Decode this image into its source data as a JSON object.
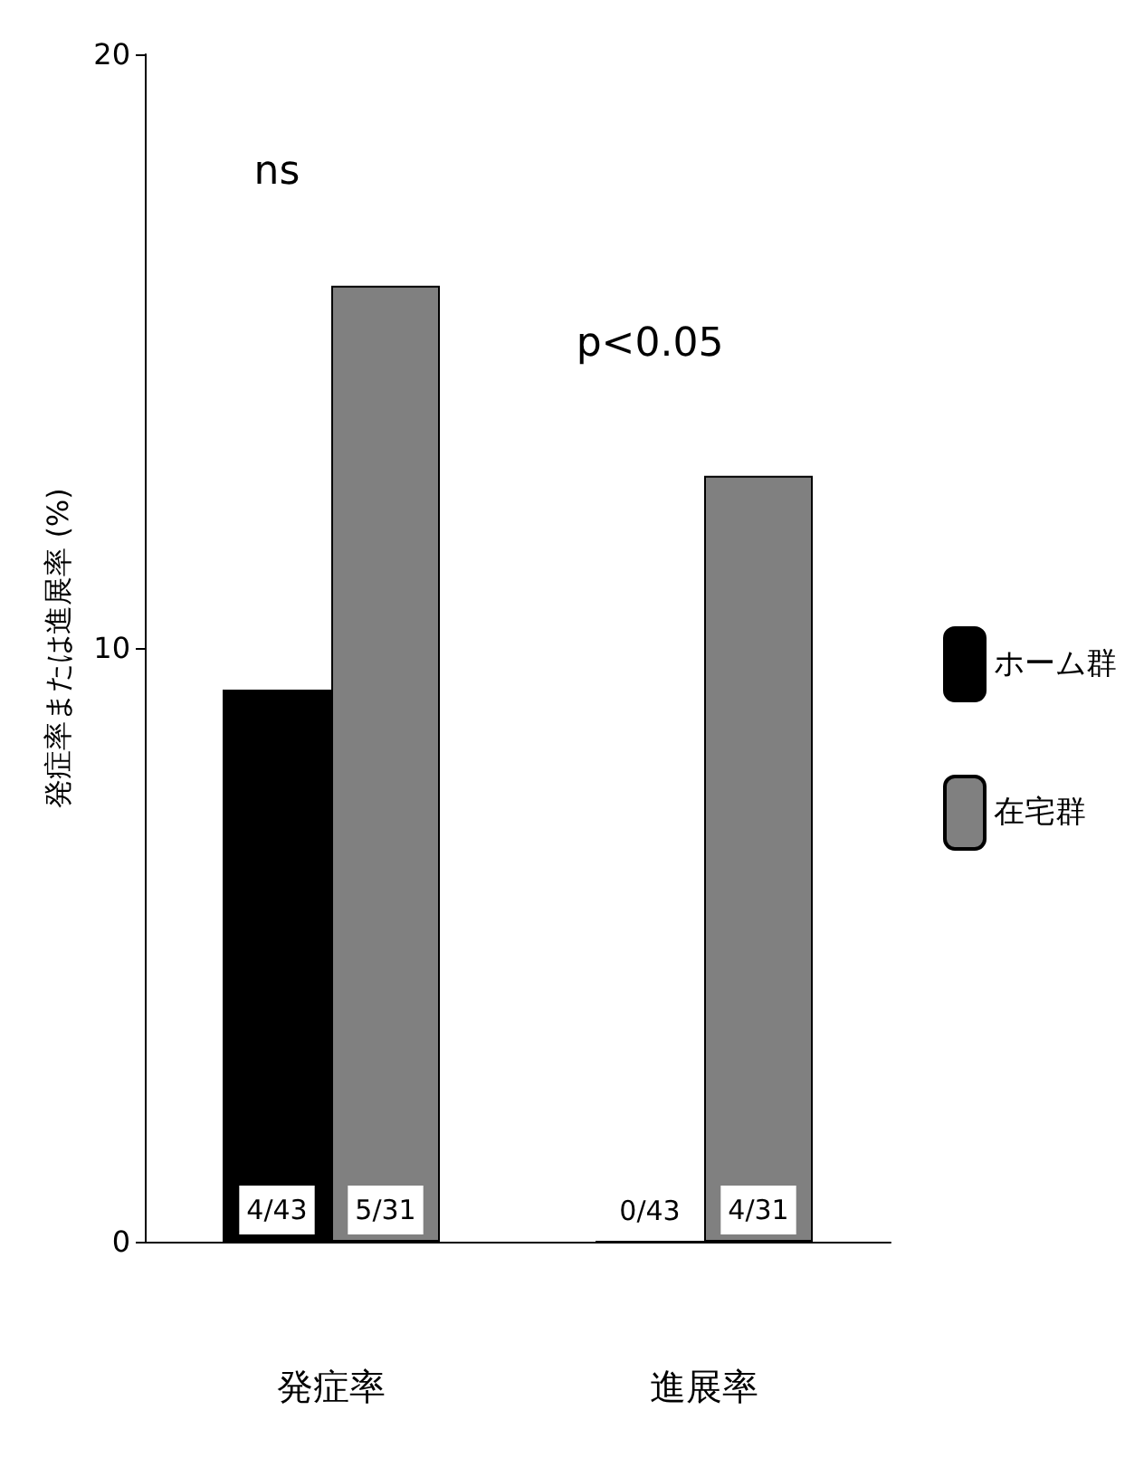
{
  "chart_data": {
    "type": "bar",
    "ylabel": "発症率または進展率 (%)",
    "categories": [
      "発症率",
      "進展率"
    ],
    "series": [
      {
        "name": "ホーム群",
        "color": "#000000",
        "values": [
          9.3,
          0
        ],
        "value_labels": [
          "4/43",
          "0/43"
        ]
      },
      {
        "name": "在宅群",
        "color": "#808080",
        "values": [
          16.1,
          12.9
        ],
        "value_labels": [
          "5/31",
          "4/31"
        ]
      }
    ],
    "ylim": [
      0,
      20
    ],
    "yticks": [
      0,
      10,
      20
    ],
    "grid": false,
    "legend": "right",
    "annotations": [
      "ns",
      "p<0.05"
    ]
  }
}
